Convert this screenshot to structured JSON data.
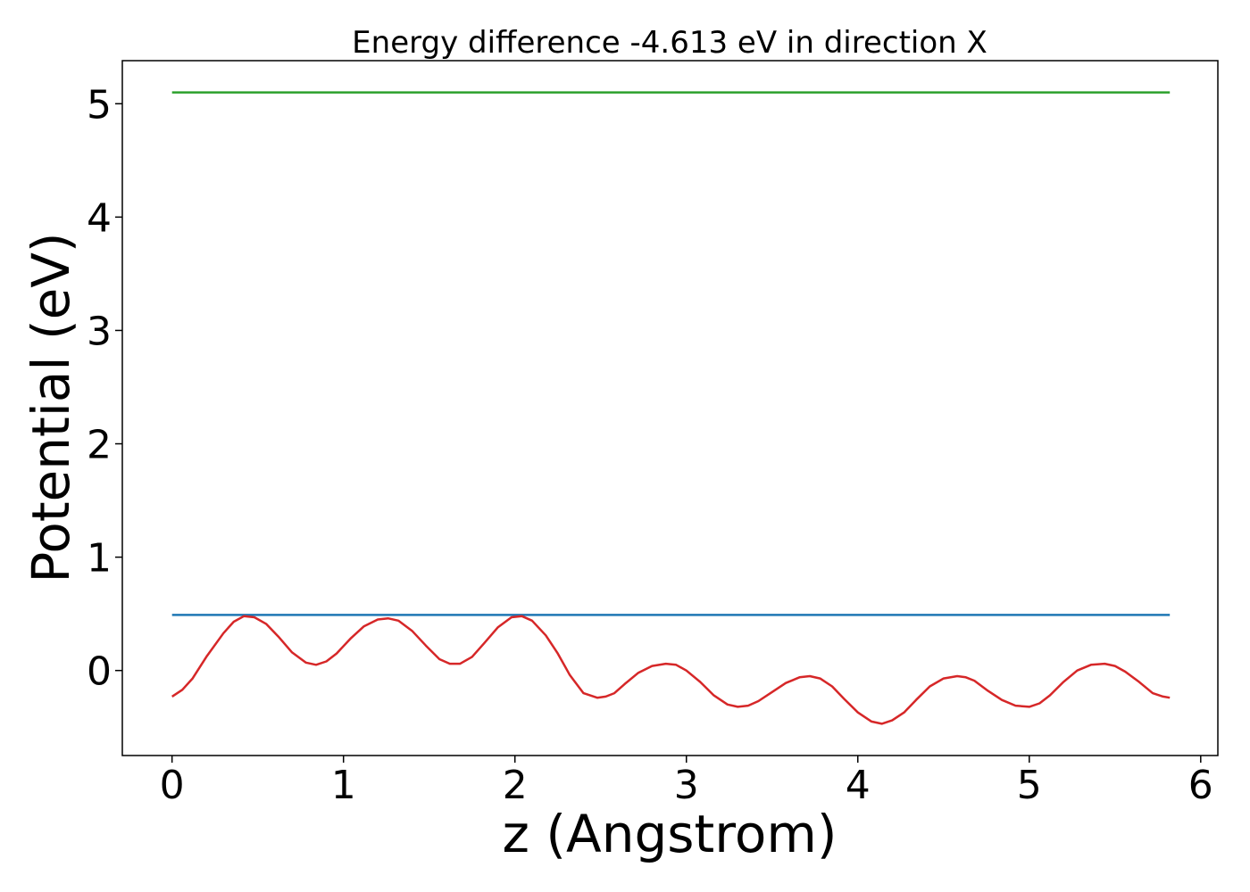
{
  "chart_data": {
    "type": "line",
    "title": "Energy difference -4.613 eV in direction X",
    "xlabel": "z (Angstrom)",
    "ylabel": "Potential (eV)",
    "xlim": [
      -0.29,
      6.1
    ],
    "ylim": [
      -0.75,
      5.38
    ],
    "xticks": [
      0,
      1,
      2,
      3,
      4,
      5,
      6
    ],
    "yticks": [
      0,
      1,
      2,
      3,
      4,
      5
    ],
    "grid": false,
    "series": [
      {
        "color": "#2ca02c",
        "x": [
          0,
          5.82
        ],
        "y": [
          5.1,
          5.1
        ]
      },
      {
        "color": "#1f77b4",
        "x": [
          0,
          5.82
        ],
        "y": [
          0.49,
          0.49
        ]
      },
      {
        "color": "#d62728",
        "x": [
          0,
          0.06,
          0.12,
          0.2,
          0.3,
          0.36,
          0.42,
          0.48,
          0.55,
          0.62,
          0.7,
          0.78,
          0.84,
          0.9,
          0.96,
          1.04,
          1.12,
          1.2,
          1.26,
          1.32,
          1.4,
          1.48,
          1.56,
          1.62,
          1.68,
          1.75,
          1.82,
          1.9,
          1.98,
          2.04,
          2.1,
          2.18,
          2.25,
          2.32,
          2.4,
          2.48,
          2.53,
          2.58,
          2.64,
          2.72,
          2.8,
          2.88,
          2.94,
          3.0,
          3.08,
          3.16,
          3.24,
          3.3,
          3.36,
          3.42,
          3.5,
          3.58,
          3.66,
          3.72,
          3.78,
          3.85,
          3.92,
          4.0,
          4.08,
          4.14,
          4.2,
          4.27,
          4.34,
          4.42,
          4.5,
          4.58,
          4.63,
          4.68,
          4.76,
          4.84,
          4.92,
          5.0,
          5.06,
          5.12,
          5.2,
          5.28,
          5.36,
          5.44,
          5.5,
          5.56,
          5.64,
          5.72,
          5.78,
          5.82
        ],
        "y": [
          -0.23,
          -0.17,
          -0.07,
          0.12,
          0.33,
          0.43,
          0.48,
          0.47,
          0.41,
          0.3,
          0.16,
          0.07,
          0.05,
          0.08,
          0.15,
          0.28,
          0.39,
          0.45,
          0.46,
          0.44,
          0.35,
          0.22,
          0.1,
          0.06,
          0.06,
          0.12,
          0.24,
          0.38,
          0.47,
          0.48,
          0.44,
          0.31,
          0.15,
          -0.04,
          -0.2,
          -0.24,
          -0.23,
          -0.2,
          -0.12,
          -0.02,
          0.04,
          0.06,
          0.05,
          0.0,
          -0.1,
          -0.22,
          -0.3,
          -0.32,
          -0.31,
          -0.27,
          -0.19,
          -0.11,
          -0.06,
          -0.05,
          -0.07,
          -0.14,
          -0.25,
          -0.37,
          -0.45,
          -0.47,
          -0.44,
          -0.37,
          -0.26,
          -0.14,
          -0.07,
          -0.05,
          -0.06,
          -0.09,
          -0.18,
          -0.26,
          -0.31,
          -0.32,
          -0.29,
          -0.22,
          -0.1,
          0.0,
          0.05,
          0.06,
          0.04,
          -0.01,
          -0.1,
          -0.2,
          -0.23,
          -0.24
        ]
      }
    ]
  }
}
